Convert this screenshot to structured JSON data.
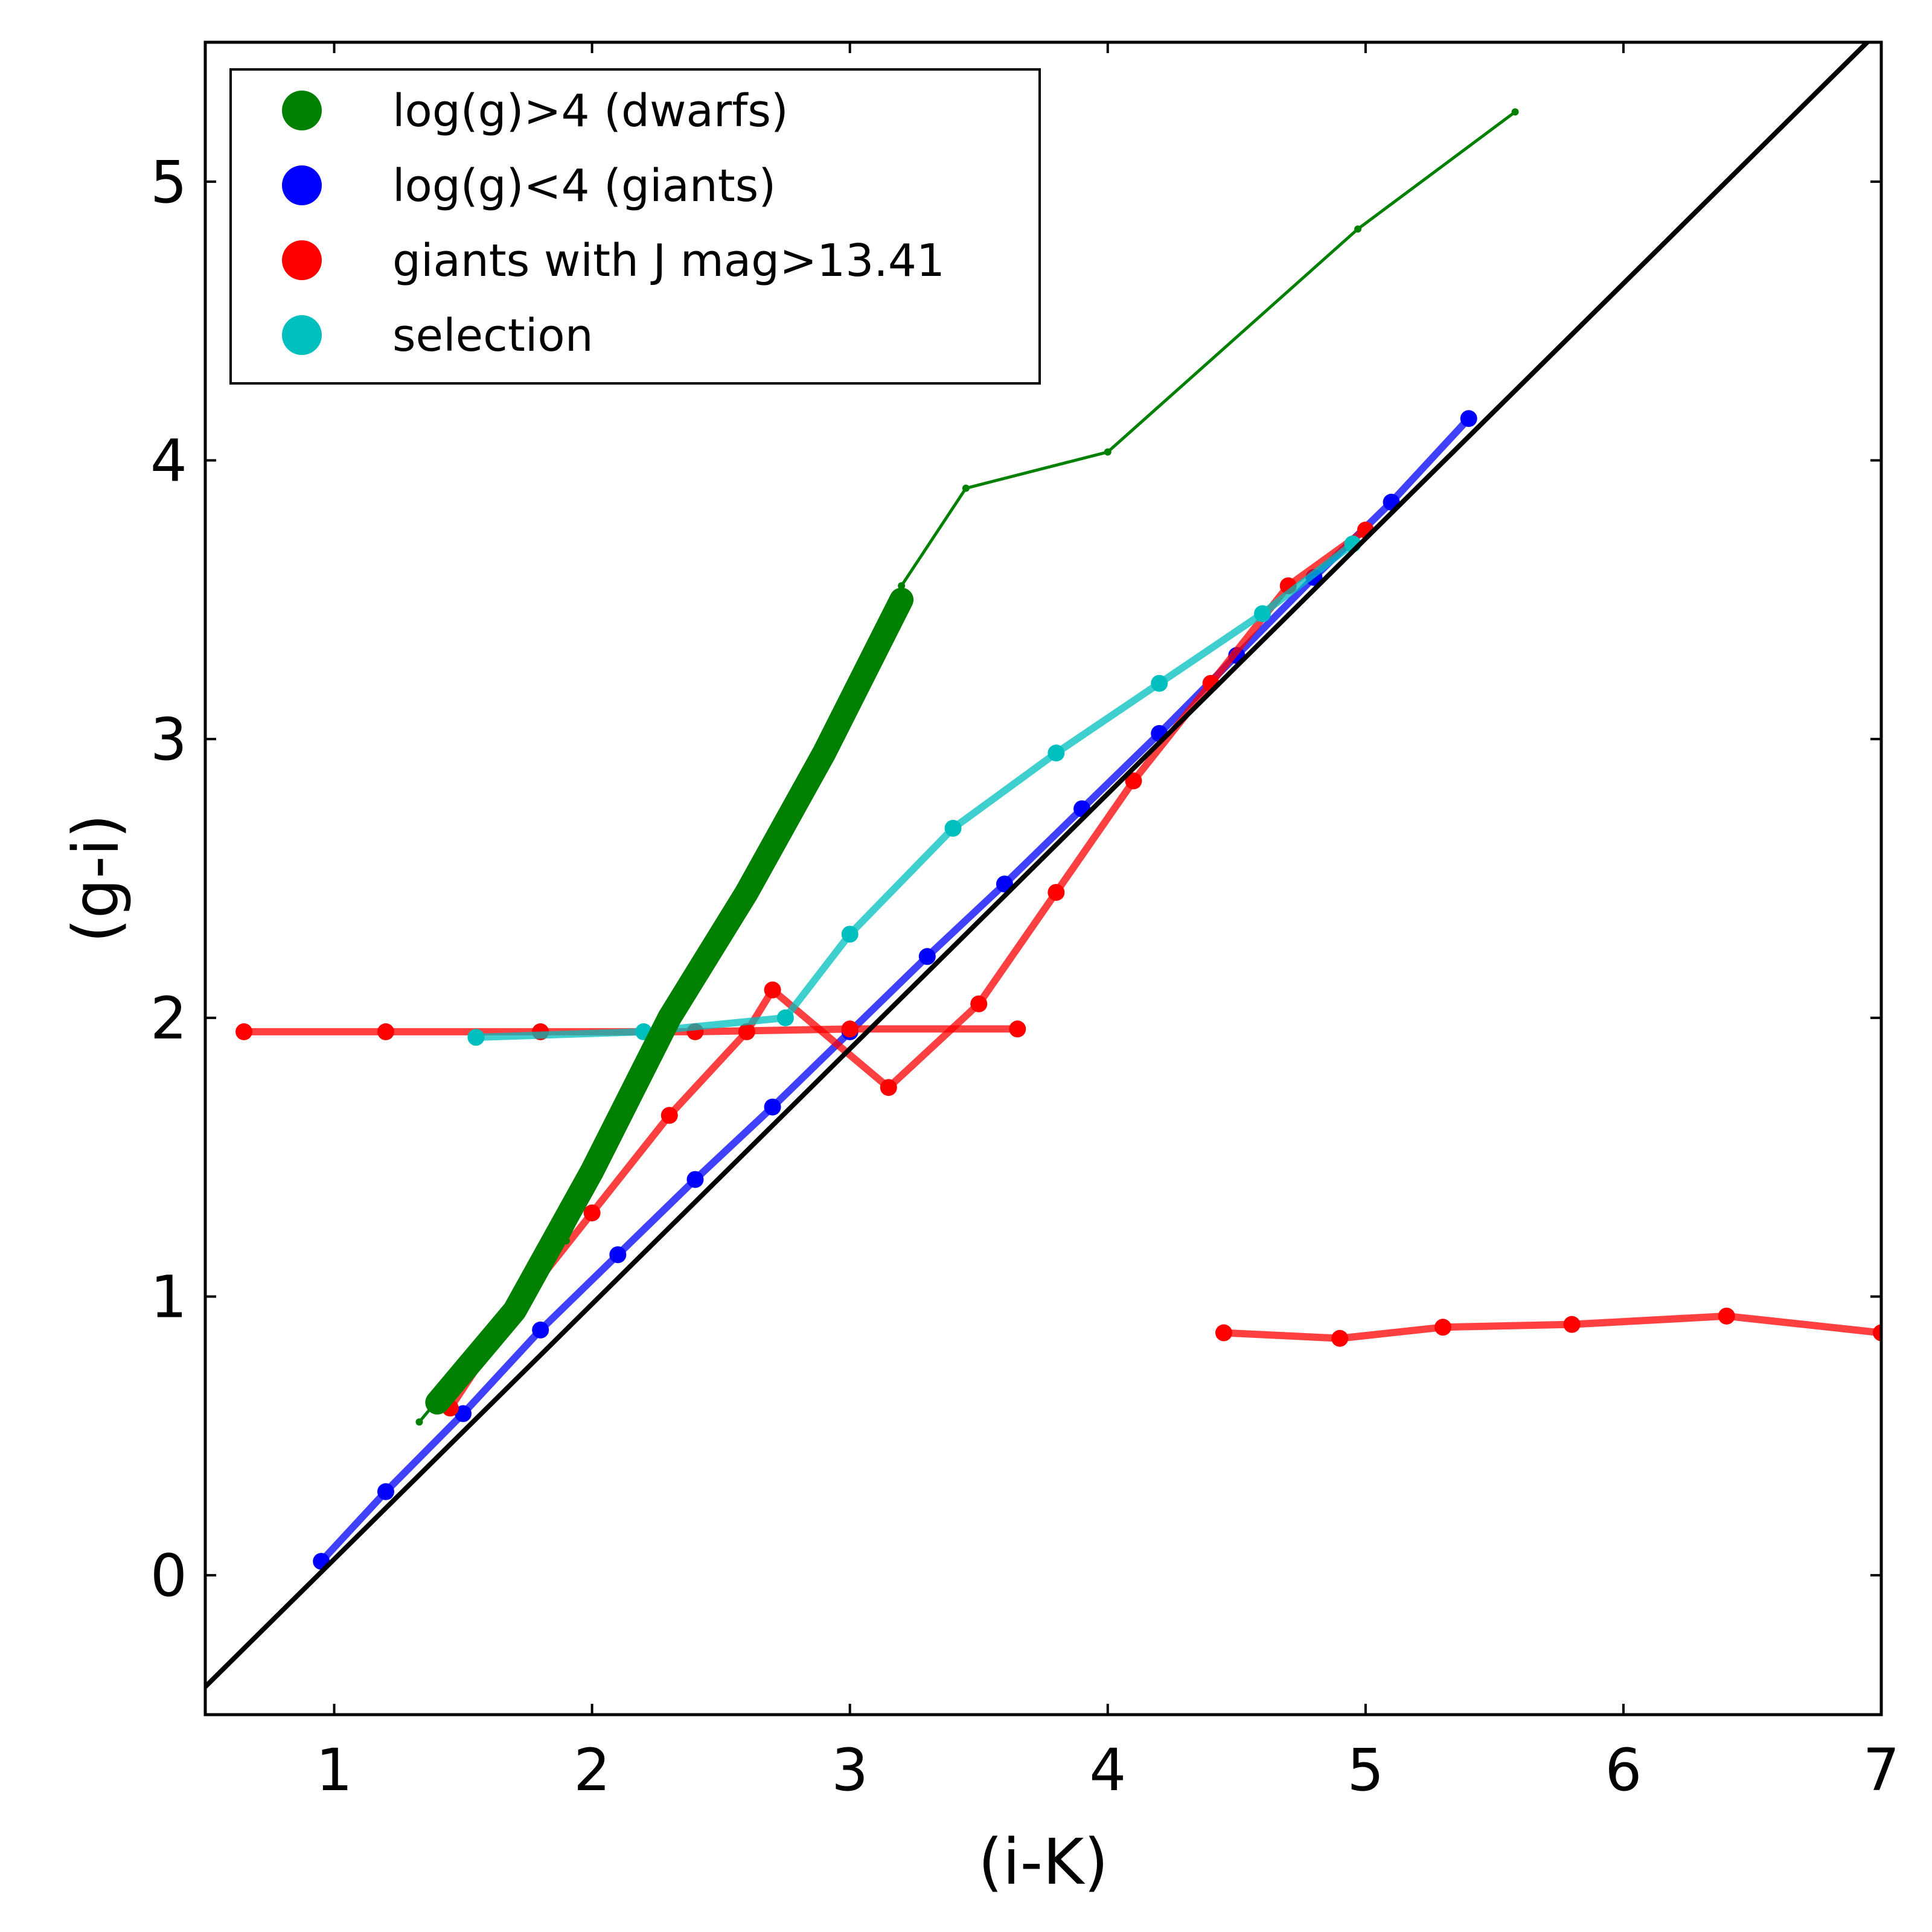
{
  "chart_data": {
    "type": "scatter",
    "title": "",
    "xlabel": "(i-K)",
    "ylabel": "(g-i)",
    "xlim": [
      0.5,
      7.0
    ],
    "ylim": [
      -0.5,
      5.5
    ],
    "x_ticks": [
      "1",
      "2",
      "3",
      "4",
      "5",
      "6",
      "7"
    ],
    "y_ticks": [
      "0",
      "1",
      "2",
      "3",
      "4",
      "5"
    ],
    "legend_position": "top-left",
    "colors": {
      "dwarfs": "#008000",
      "giants": "#0000ff",
      "faint_giants": "#ff0000",
      "selection": "#00bfbf",
      "reference": "#000000"
    },
    "legend": [
      {
        "label": "log(g)>4 (dwarfs)",
        "color": "#008000"
      },
      {
        "label": "log(g)<4 (giants)",
        "color": "#0000ff"
      },
      {
        "label": "giants with J mag>13.41",
        "color": "#ff0000"
      },
      {
        "label": "selection",
        "color": "#00bfbf"
      }
    ],
    "reference_line": {
      "name": "reference line",
      "x": [
        0.5,
        7.0
      ],
      "y": [
        -0.4,
        5.55
      ]
    },
    "series": [
      {
        "name": "log(g)>4 (dwarfs) track",
        "color": "#008000",
        "x": [
          1.33,
          1.6,
          1.9,
          2.2,
          2.6,
          3.2,
          3.45,
          4.0,
          4.97,
          5.58
        ],
        "y": [
          0.55,
          0.85,
          1.2,
          1.75,
          2.5,
          3.55,
          3.9,
          4.03,
          4.83,
          5.25
        ]
      },
      {
        "name": "log(g)>4 (dwarfs) band",
        "color": "#008000",
        "x": [
          1.4,
          1.7,
          2.0,
          2.3,
          2.6,
          2.9,
          3.2
        ],
        "y": [
          0.62,
          0.95,
          1.45,
          2.0,
          2.45,
          2.95,
          3.5
        ]
      },
      {
        "name": "log(g)<4 (giants)",
        "color": "#0000ff",
        "x": [
          0.95,
          1.2,
          1.5,
          1.8,
          2.1,
          2.4,
          2.7,
          3.0,
          3.3,
          3.6,
          3.9,
          4.2,
          4.5,
          4.8,
          5.1,
          5.4
        ],
        "y": [
          0.05,
          0.3,
          0.58,
          0.88,
          1.15,
          1.42,
          1.68,
          1.95,
          2.22,
          2.48,
          2.75,
          3.02,
          3.3,
          3.58,
          3.85,
          4.15
        ]
      },
      {
        "name": "giants with J mag>13.41",
        "color": "#ff0000",
        "x": [
          1.45,
          1.7,
          2.0,
          2.3,
          2.6,
          2.7,
          3.15,
          3.5,
          3.8,
          4.1,
          4.4,
          4.7,
          5.0
        ],
        "y": [
          0.6,
          0.95,
          1.3,
          1.65,
          1.95,
          2.1,
          1.75,
          2.05,
          2.45,
          2.85,
          3.2,
          3.55,
          3.75
        ]
      },
      {
        "name": "giants with J mag>13.41 (horizontal features)",
        "color": "#ff0000",
        "x": [
          0.65,
          1.2,
          1.8,
          2.4,
          3.0,
          3.65
        ],
        "y": [
          1.95,
          1.95,
          1.95,
          1.95,
          1.96,
          1.96
        ]
      },
      {
        "name": "giants with J mag>13.41 (high i-K clump)",
        "color": "#ff0000",
        "x": [
          4.45,
          4.9,
          5.3,
          5.8,
          6.4,
          7.0
        ],
        "y": [
          0.87,
          0.85,
          0.89,
          0.9,
          0.93,
          0.87
        ]
      },
      {
        "name": "selection",
        "color": "#00bfbf",
        "x": [
          1.55,
          2.2,
          2.75,
          3.0,
          3.4,
          3.8,
          4.2,
          4.6,
          4.95
        ],
        "y": [
          1.93,
          1.95,
          2.0,
          2.3,
          2.68,
          2.95,
          3.2,
          3.45,
          3.7
        ]
      }
    ]
  }
}
